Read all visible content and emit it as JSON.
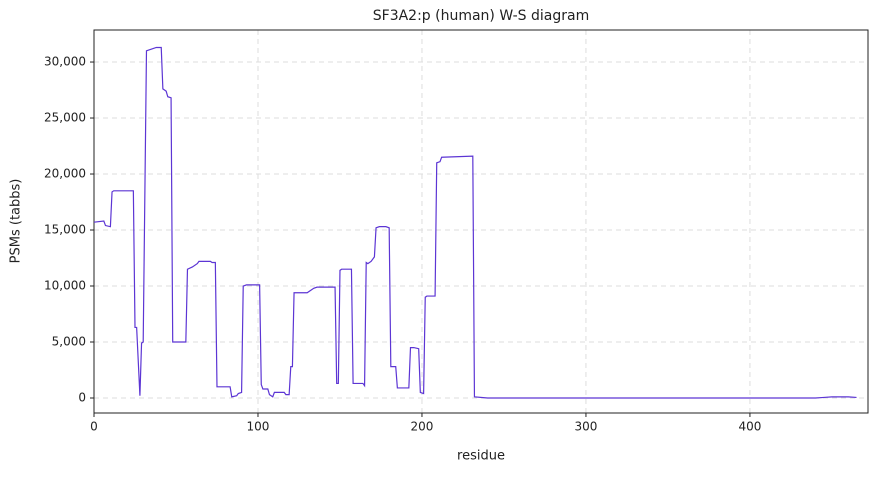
{
  "chart_data": {
    "type": "line",
    "title": "SF3A2:p (human) W-S diagram",
    "xlabel": "residue",
    "ylabel": "PSMs (tabbs)",
    "x": [
      0,
      6,
      7,
      10,
      11,
      12,
      24,
      25,
      26,
      28,
      29,
      30,
      32,
      38,
      41,
      42,
      44,
      45,
      47,
      48,
      56,
      57,
      60,
      63,
      64,
      71,
      72,
      74,
      75,
      83,
      84,
      87,
      88,
      90,
      91,
      93,
      101,
      102,
      103,
      106,
      107,
      109,
      110,
      116,
      117,
      119,
      120,
      121,
      122,
      130,
      134,
      136,
      147,
      148,
      149,
      150,
      151,
      157,
      158,
      164,
      165,
      166,
      167,
      169,
      171,
      172,
      174,
      178,
      180,
      181,
      184,
      185,
      192,
      193,
      195,
      198,
      199,
      201,
      202,
      203,
      208,
      209,
      211,
      212,
      231,
      232,
      240,
      440,
      445,
      450,
      460,
      465
    ],
    "series": [
      {
        "name": "SF3A2:p",
        "color": "#5c35d4",
        "values": [
          15700,
          15800,
          15400,
          15300,
          18400,
          18500,
          18500,
          6300,
          6300,
          200,
          4900,
          5000,
          31000,
          31300,
          31300,
          27600,
          27400,
          26900,
          26800,
          5000,
          5000,
          11500,
          11700,
          12000,
          12200,
          12200,
          12100,
          12100,
          1000,
          1000,
          100,
          200,
          400,
          500,
          10000,
          10100,
          10100,
          1200,
          800,
          800,
          300,
          100,
          500,
          500,
          300,
          300,
          2800,
          2800,
          9400,
          9400,
          9800,
          9900,
          9900,
          1300,
          1300,
          11400,
          11500,
          11500,
          1300,
          1300,
          1100,
          12100,
          12000,
          12200,
          12600,
          15200,
          15300,
          15300,
          15200,
          2800,
          2800,
          900,
          900,
          4500,
          4500,
          4400,
          500,
          400,
          9000,
          9100,
          9100,
          21000,
          21100,
          21500,
          21600,
          100,
          0,
          0,
          50,
          100,
          100,
          50
        ]
      }
    ],
    "xlim": [
      0,
      472
    ],
    "xticks": [
      0,
      100,
      200,
      300,
      400
    ],
    "ylim": [
      -1340,
      32860
    ],
    "yticks": [
      0,
      {
        "value": 5000,
        "label": "5,000"
      },
      {
        "value": 10000,
        "label": "10,000"
      },
      {
        "value": 15000,
        "label": "15,000"
      },
      {
        "value": 20000,
        "label": "20,000"
      },
      {
        "value": 25000,
        "label": "25,000"
      },
      {
        "value": 30000,
        "label": "30,000"
      }
    ],
    "grid": true
  }
}
